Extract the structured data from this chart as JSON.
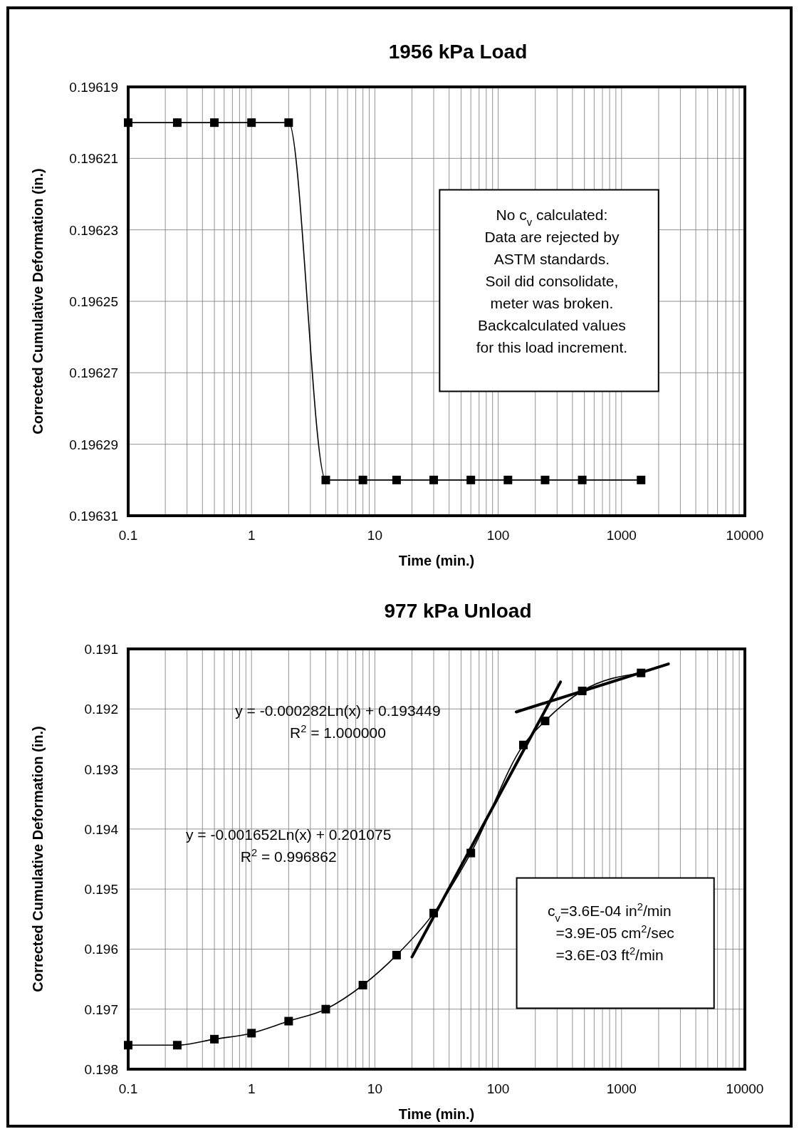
{
  "chart_data": [
    {
      "type": "line",
      "title": "1956 kPa Load",
      "xlabel": "Time (min.)",
      "ylabel": "Corrected Cumulative Deformation (in.)",
      "log": "x",
      "grid": true,
      "marker": "square",
      "x": [
        0.1,
        0.25,
        0.5,
        1,
        2,
        4,
        8,
        15,
        30,
        60,
        120,
        240,
        480,
        1440
      ],
      "series": [
        {
          "color": "#000000",
          "values": [
            0.1962,
            0.1962,
            0.1962,
            0.1962,
            0.1962,
            0.1963,
            0.1963,
            0.1963,
            0.1963,
            0.1963,
            0.1963,
            0.1963,
            0.1963,
            0.1963
          ]
        }
      ],
      "xlim": [
        0.1,
        10000
      ],
      "xticks": [
        0.1,
        {
          "value": 0.2,
          "label": null
        },
        {
          "value": 0.3,
          "label": null
        },
        {
          "value": 0.4,
          "label": null
        },
        {
          "value": 0.5,
          "label": null
        },
        {
          "value": 0.6,
          "label": null
        },
        {
          "value": 0.7,
          "label": null
        },
        {
          "value": 0.8,
          "label": null
        },
        {
          "value": 0.9,
          "label": null
        },
        1,
        {
          "value": 2,
          "label": null
        },
        {
          "value": 3,
          "label": null
        },
        {
          "value": 4,
          "label": null
        },
        {
          "value": 5,
          "label": null
        },
        {
          "value": 6,
          "label": null
        },
        {
          "value": 7,
          "label": null
        },
        {
          "value": 8,
          "label": null
        },
        {
          "value": 9,
          "label": null
        },
        10,
        {
          "value": 20,
          "label": null
        },
        {
          "value": 30,
          "label": null
        },
        {
          "value": 40,
          "label": null
        },
        {
          "value": 50,
          "label": null
        },
        {
          "value": 60,
          "label": null
        },
        {
          "value": 70,
          "label": null
        },
        {
          "value": 80,
          "label": null
        },
        {
          "value": 90,
          "label": null
        },
        100,
        {
          "value": 200,
          "label": null
        },
        {
          "value": 300,
          "label": null
        },
        {
          "value": 400,
          "label": null
        },
        {
          "value": 500,
          "label": null
        },
        {
          "value": 600,
          "label": null
        },
        {
          "value": 700,
          "label": null
        },
        {
          "value": 800,
          "label": null
        },
        {
          "value": 900,
          "label": null
        },
        1000,
        {
          "value": 2000,
          "label": null
        },
        {
          "value": 3000,
          "label": null
        },
        {
          "value": 4000,
          "label": null
        },
        {
          "value": 5000,
          "label": null
        },
        {
          "value": 6000,
          "label": null
        },
        {
          "value": 7000,
          "label": null
        },
        {
          "value": 8000,
          "label": null
        },
        {
          "value": 9000,
          "label": null
        },
        10000
      ],
      "ylim": [
        0.19631,
        0.19619
      ],
      "yticks": [
        0.19619,
        0.19621,
        0.19623,
        0.19625,
        0.19627,
        0.19629,
        0.19631
      ],
      "annotations": [
        "No c$_{v}$ calculated:\nData are rejected by\nASTM standards.\nSoil did consolidate,\nmeter was broken.\nBackcalculated values\nfor this load increment."
      ]
    },
    {
      "type": "line",
      "title": "977 kPa Unload",
      "xlabel": "Time (min.)",
      "ylabel": "Corrected Cumulative Deformation (in.)",
      "log": "x",
      "grid": true,
      "x": [
        0.1,
        0.25,
        0.5,
        1,
        2,
        4,
        8,
        15,
        30,
        60,
        160,
        240,
        480,
        1440
      ],
      "series": [
        {
          "color": "#000000",
          "marker": "square",
          "values": [
            0.1976,
            0.1976,
            0.1975,
            0.1974,
            0.1972,
            0.197,
            0.1966,
            0.1961,
            0.1954,
            0.1944,
            0.1926,
            0.1922,
            0.1917,
            0.1914
          ]
        },
        {
          "color": "#000000",
          "marker": "none",
          "x": [
            140,
            2400
          ],
          "values": [
            0.19205,
            0.19125
          ]
        },
        {
          "color": "#000000",
          "marker": "none",
          "x": [
            20,
            320
          ],
          "values": [
            0.19613,
            0.19155
          ]
        }
      ],
      "xlim": [
        0.1,
        10000
      ],
      "xticks": [
        0.1,
        {
          "value": 0.2,
          "label": null
        },
        {
          "value": 0.3,
          "label": null
        },
        {
          "value": 0.4,
          "label": null
        },
        {
          "value": 0.5,
          "label": null
        },
        {
          "value": 0.6,
          "label": null
        },
        {
          "value": 0.7,
          "label": null
        },
        {
          "value": 0.8,
          "label": null
        },
        {
          "value": 0.9,
          "label": null
        },
        1,
        {
          "value": 2,
          "label": null
        },
        {
          "value": 3,
          "label": null
        },
        {
          "value": 4,
          "label": null
        },
        {
          "value": 5,
          "label": null
        },
        {
          "value": 6,
          "label": null
        },
        {
          "value": 7,
          "label": null
        },
        {
          "value": 8,
          "label": null
        },
        {
          "value": 9,
          "label": null
        },
        10,
        {
          "value": 20,
          "label": null
        },
        {
          "value": 30,
          "label": null
        },
        {
          "value": 40,
          "label": null
        },
        {
          "value": 50,
          "label": null
        },
        {
          "value": 60,
          "label": null
        },
        {
          "value": 70,
          "label": null
        },
        {
          "value": 80,
          "label": null
        },
        {
          "value": 90,
          "label": null
        },
        100,
        {
          "value": 200,
          "label": null
        },
        {
          "value": 300,
          "label": null
        },
        {
          "value": 400,
          "label": null
        },
        {
          "value": 500,
          "label": null
        },
        {
          "value": 600,
          "label": null
        },
        {
          "value": 700,
          "label": null
        },
        {
          "value": 800,
          "label": null
        },
        {
          "value": 900,
          "label": null
        },
        1000,
        {
          "value": 2000,
          "label": null
        },
        {
          "value": 3000,
          "label": null
        },
        {
          "value": 4000,
          "label": null
        },
        {
          "value": 5000,
          "label": null
        },
        {
          "value": 6000,
          "label": null
        },
        {
          "value": 7000,
          "label": null
        },
        {
          "value": 8000,
          "label": null
        },
        {
          "value": 9000,
          "label": null
        },
        10000
      ],
      "ylim": [
        0.198,
        0.191
      ],
      "yticks": [
        0.191,
        0.192,
        0.193,
        0.194,
        0.195,
        0.196,
        0.197,
        0.198
      ],
      "annotations": [
        "y = -0.000282Ln(x) + 0.193449\nR$^{2}$ = 1.000000",
        "y = -0.001652Ln(x) + 0.201075\nR$^{2}$ = 0.996862",
        "c$_{v}$=3.6E-04 in$^{2}$/min\n  =3.9E-05 cm$^{2}$/sec\n  =3.6E-03 ft$^{2}$/min"
      ]
    }
  ]
}
